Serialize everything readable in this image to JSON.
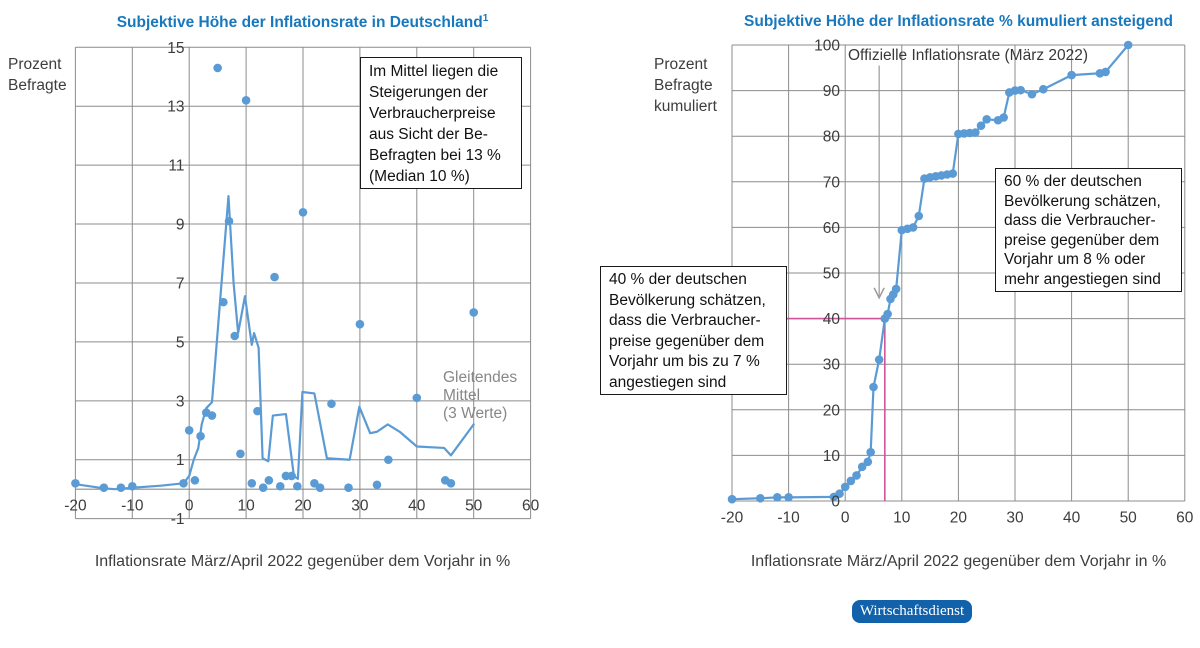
{
  "colors": {
    "background": "#ffffff",
    "series_blue": "#5b9bd5",
    "title_blue": "#1878be",
    "badge_blue": "#1161ab",
    "pink": "#d0559b",
    "grid_gray": "#8c8c8c",
    "tick_text": "#3d3d3d",
    "muted_label": "#878787",
    "dark_label": "#383838",
    "pointer_gray": "#9a9a9a"
  },
  "badge": {
    "label": "Wirtschaftsdienst"
  },
  "chart_data": [
    {
      "type": "scatter",
      "title": "Subjektive Höhe der Inflationsrate in Deutschland",
      "title_footnote_marker": "1",
      "xlabel": "Inflationsrate März/April 2022 gegenüber dem Vorjahr in %",
      "ylabel": "Prozent\nBefragte",
      "xlim": [
        -20,
        60
      ],
      "ylim": [
        -1,
        15
      ],
      "x_ticks": [
        -20,
        -10,
        0,
        10,
        20,
        30,
        40,
        50,
        60
      ],
      "y_ticks": [
        15,
        13,
        11,
        9,
        7,
        5,
        3,
        1,
        -1
      ],
      "baseline": 0,
      "grid": true,
      "annotation": "Im Mittel liegen die\nSteigerungen der\nVerbraucherpreise\naus Sicht der Be-\nBefragten bei 13 %\n(Median 10 %)",
      "series_label": "Gleitendes\nMittel\n(3 Werte)",
      "series": [
        {
          "name": "Prozent Befragte je genannter Inflationsrate",
          "type": "scatter",
          "points": [
            [
              -20,
              0.2
            ],
            [
              -15,
              0.05
            ],
            [
              -12,
              0.05
            ],
            [
              -10,
              0.1
            ],
            [
              -1,
              0.2
            ],
            [
              0,
              2.0
            ],
            [
              1,
              0.3
            ],
            [
              2,
              1.8
            ],
            [
              3,
              2.6
            ],
            [
              4,
              2.5
            ],
            [
              5,
              14.3
            ],
            [
              6,
              6.35
            ],
            [
              7,
              9.1
            ],
            [
              8,
              5.2
            ],
            [
              9,
              1.2
            ],
            [
              10,
              13.2
            ],
            [
              11,
              0.2
            ],
            [
              12,
              2.65
            ],
            [
              13,
              0.05
            ],
            [
              14,
              0.3
            ],
            [
              15,
              7.2
            ],
            [
              16,
              0.1
            ],
            [
              17,
              0.45
            ],
            [
              18,
              0.45
            ],
            [
              19,
              0.1
            ],
            [
              20,
              9.4
            ],
            [
              22,
              0.2
            ],
            [
              23,
              0.05
            ],
            [
              25,
              2.9
            ],
            [
              28,
              0.05
            ],
            [
              30,
              5.6
            ],
            [
              33,
              0.15
            ],
            [
              35,
              1.0
            ],
            [
              40,
              3.1
            ],
            [
              45,
              0.3
            ],
            [
              46,
              0.2
            ],
            [
              50,
              6.0
            ]
          ]
        },
        {
          "name": "Gleitendes Mittel (3 Werte)",
          "type": "line",
          "points": [
            [
              -20,
              0.17
            ],
            [
              -15,
              0.03
            ],
            [
              -13,
              0.0
            ],
            [
              -10,
              0.05
            ],
            [
              -5,
              0.12
            ],
            [
              -1,
              0.2
            ],
            [
              0,
              0.45
            ],
            [
              0.8,
              1.0
            ],
            [
              1.6,
              1.4
            ],
            [
              2.2,
              2.2
            ],
            [
              3,
              2.75
            ],
            [
              4,
              2.95
            ],
            [
              4.4,
              3.9
            ],
            [
              6.9,
              9.95
            ],
            [
              7.8,
              7.0
            ],
            [
              8.6,
              5.3
            ],
            [
              9.8,
              6.55
            ],
            [
              11.0,
              4.9
            ],
            [
              11.4,
              5.3
            ],
            [
              12.2,
              4.8
            ],
            [
              12.9,
              1.05
            ],
            [
              13.9,
              0.95
            ],
            [
              14.7,
              2.5
            ],
            [
              17.0,
              2.55
            ],
            [
              18.4,
              0.45
            ],
            [
              19.1,
              0.35
            ],
            [
              19.9,
              3.3
            ],
            [
              22.0,
              3.25
            ],
            [
              24.2,
              1.05
            ],
            [
              28.2,
              1.0
            ],
            [
              29.9,
              2.8
            ],
            [
              31.8,
              1.9
            ],
            [
              33.0,
              1.95
            ],
            [
              34.9,
              2.2
            ],
            [
              37.0,
              1.95
            ],
            [
              40.0,
              1.45
            ],
            [
              44.8,
              1.4
            ],
            [
              46.0,
              1.15
            ],
            [
              50.0,
              2.2
            ]
          ]
        }
      ]
    },
    {
      "type": "line",
      "title": "Subjektive Höhe der Inflationsrate % kumuliert ansteigend",
      "xlabel": "Inflationsrate März/April 2022 gegenüber dem Vorjahr in %",
      "ylabel": "Prozent\nBefragte\nkumuliert",
      "xlim": [
        -20,
        60
      ],
      "ylim": [
        0,
        100
      ],
      "x_ticks": [
        -20,
        -10,
        0,
        10,
        20,
        30,
        40,
        50,
        60
      ],
      "y_ticks": [
        100,
        90,
        80,
        70,
        60,
        50,
        40,
        30,
        20,
        10,
        0
      ],
      "grid": true,
      "reference_label": "Offizielle Inflationsrate (März 2022)",
      "annotation_40": "40 % der deutschen\nBevölkerung schätzen,\ndass die Verbraucher-\npreise gegenüber dem\nVorjahr um bis zu 7 %\nangestiegen sind",
      "annotation_60": "60 % der deutschen\nBevölkerung schätzen,\ndass die Verbraucher-\npreise gegenüber dem\nVorjahr um 8 % oder\nmehr angestiegen sind",
      "reference_lines": [
        {
          "type": "horizontal",
          "y": 40,
          "x_from": -20,
          "x_to": 7
        },
        {
          "type": "vertical",
          "x": 7,
          "y_from": 0,
          "y_to": 40
        }
      ],
      "pointer": {
        "x": 6,
        "y_from": 95.5,
        "y_to": 45
      },
      "series": [
        {
          "name": "Kumulierter Anteil der Befragten",
          "type": "line_scatter",
          "points": [
            [
              -20,
              0.4
            ],
            [
              -15,
              0.6
            ],
            [
              -12,
              0.8
            ],
            [
              -10,
              0.8
            ],
            [
              -2,
              0.9
            ],
            [
              -1,
              1.6
            ],
            [
              0,
              3.1
            ],
            [
              1,
              4.4
            ],
            [
              2,
              5.6
            ],
            [
              3,
              7.5
            ],
            [
              4,
              8.6
            ],
            [
              4.5,
              10.7
            ],
            [
              5,
              25
            ],
            [
              6,
              31
            ],
            [
              7,
              40
            ],
            [
              7.5,
              41
            ],
            [
              8,
              44.3
            ],
            [
              8.5,
              45.3
            ],
            [
              9,
              46.5
            ],
            [
              10,
              59.4
            ],
            [
              11,
              59.7
            ],
            [
              12,
              60
            ],
            [
              13,
              62.5
            ],
            [
              14,
              70.7
            ],
            [
              15,
              71
            ],
            [
              16,
              71.2
            ],
            [
              17,
              71.4
            ],
            [
              18,
              71.6
            ],
            [
              19,
              71.8
            ],
            [
              20,
              80.5
            ],
            [
              21,
              80.6
            ],
            [
              22,
              80.7
            ],
            [
              23,
              80.8
            ],
            [
              24,
              82.3
            ],
            [
              25,
              83.7
            ],
            [
              27,
              83.5
            ],
            [
              28,
              84.1
            ],
            [
              29,
              89.6
            ],
            [
              30,
              90
            ],
            [
              31,
              90.1
            ],
            [
              33,
              89.2
            ],
            [
              35,
              90.3
            ],
            [
              40,
              93.4
            ],
            [
              45,
              93.8
            ],
            [
              46,
              94.1
            ],
            [
              50,
              100
            ]
          ]
        }
      ]
    }
  ]
}
